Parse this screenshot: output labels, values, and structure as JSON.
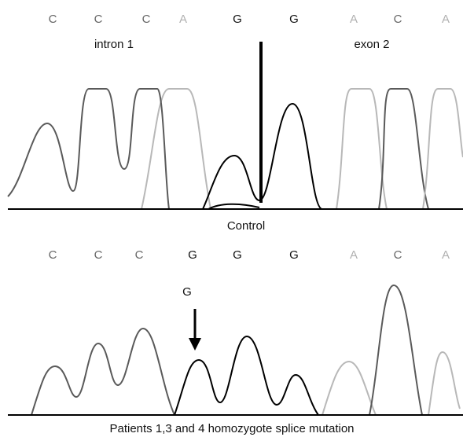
{
  "control": {
    "bases": [
      "C",
      "C",
      "C",
      "A",
      "G",
      "G",
      "A",
      "C",
      "A"
    ],
    "left_label": "intron 1",
    "right_label": "exon 2",
    "caption": "Control"
  },
  "patient": {
    "bases": [
      "C",
      "C",
      "C",
      "G",
      "G",
      "G",
      "A",
      "C",
      "A"
    ],
    "mutation_label": "G",
    "caption": "Patients 1,3 and 4 homozygote splice mutation"
  }
}
